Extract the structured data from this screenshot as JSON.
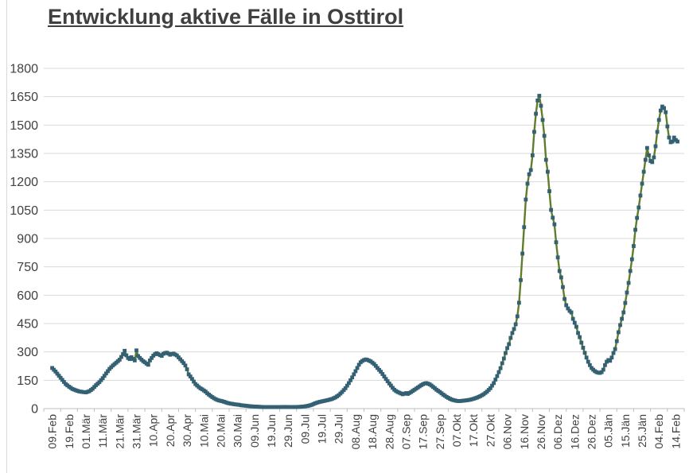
{
  "title": "Entwicklung aktive Fälle in Osttirol",
  "colors": {
    "line": "#5f7d2b",
    "marker": "#346074",
    "gridline": "#d9d9d9",
    "axis": "#bfbfbf",
    "text": "#404040",
    "title_text": "#404040",
    "background": "#ffffff",
    "window_edge": "#d9d9d9"
  },
  "chart_data": {
    "type": "line",
    "title": "Entwicklung aktive Fälle in Osttirol",
    "xlabel": "",
    "ylabel": "",
    "ylim": [
      0,
      1800
    ],
    "y_ticks": [
      0,
      150,
      300,
      450,
      600,
      750,
      900,
      1050,
      1200,
      1350,
      1500,
      1650,
      1800
    ],
    "grid": "horizontal",
    "legend": "none",
    "x_is_daily_dates": true,
    "x_total_days": 371,
    "x_tick_interval_days": 10,
    "x_tick_labels": [
      "09.Feb",
      "19.Feb",
      "01.Mär",
      "11.Mär",
      "21.Mär",
      "31.Mär",
      "10.Apr",
      "20.Apr",
      "30.Apr",
      "10.Mai",
      "20.Mai",
      "30.Mai",
      "09.Jun",
      "19.Jun",
      "29.Jun",
      "09.Jul",
      "19.Jul",
      "29.Jul",
      "08.Aug",
      "18.Aug",
      "28.Aug",
      "07.Sep",
      "17.Sep",
      "27.Sep",
      "07.Okt",
      "17.Okt",
      "27.Okt",
      "06.Nov",
      "16.Nov",
      "26.Nov",
      "06.Dez",
      "16.Dez",
      "26.Dez",
      "05.Jän",
      "15.Jän",
      "25.Jän",
      "04.Feb",
      "14.Feb"
    ],
    "series": [
      {
        "name": "aktive Fälle",
        "marker": "square",
        "keyframes_day_value": [
          [
            0,
            215
          ],
          [
            2,
            196
          ],
          [
            4,
            174
          ],
          [
            6,
            152
          ],
          [
            8,
            130
          ],
          [
            10,
            116
          ],
          [
            12,
            104
          ],
          [
            14,
            97
          ],
          [
            16,
            91
          ],
          [
            18,
            88
          ],
          [
            20,
            86
          ],
          [
            22,
            92
          ],
          [
            24,
            105
          ],
          [
            26,
            124
          ],
          [
            28,
            140
          ],
          [
            30,
            161
          ],
          [
            32,
            186
          ],
          [
            34,
            210
          ],
          [
            36,
            228
          ],
          [
            38,
            243
          ],
          [
            40,
            259
          ],
          [
            41,
            273
          ],
          [
            42,
            288
          ],
          [
            43,
            306
          ],
          [
            44,
            282
          ],
          [
            45,
            268
          ],
          [
            46,
            262
          ],
          [
            47,
            272
          ],
          [
            48,
            263
          ],
          [
            49,
            255
          ],
          [
            50,
            308
          ],
          [
            51,
            278
          ],
          [
            52,
            268
          ],
          [
            53,
            259
          ],
          [
            54,
            251
          ],
          [
            55,
            245
          ],
          [
            56,
            238
          ],
          [
            57,
            232
          ],
          [
            58,
            255
          ],
          [
            59,
            268
          ],
          [
            60,
            280
          ],
          [
            61,
            288
          ],
          [
            62,
            293
          ],
          [
            63,
            288
          ],
          [
            64,
            283
          ],
          [
            65,
            279
          ],
          [
            66,
            290
          ],
          [
            67,
            294
          ],
          [
            68,
            296
          ],
          [
            69,
            291
          ],
          [
            70,
            285
          ],
          [
            71,
            289
          ],
          [
            72,
            291
          ],
          [
            73,
            286
          ],
          [
            74,
            281
          ],
          [
            75,
            271
          ],
          [
            76,
            261
          ],
          [
            77,
            251
          ],
          [
            78,
            241
          ],
          [
            79,
            228
          ],
          [
            80,
            208
          ],
          [
            81,
            181
          ],
          [
            82,
            170
          ],
          [
            83,
            157
          ],
          [
            84,
            143
          ],
          [
            85,
            130
          ],
          [
            86,
            122
          ],
          [
            87,
            114
          ],
          [
            88,
            107
          ],
          [
            89,
            102
          ],
          [
            90,
            96
          ],
          [
            91,
            90
          ],
          [
            92,
            81
          ],
          [
            93,
            74
          ],
          [
            94,
            67
          ],
          [
            95,
            61
          ],
          [
            96,
            55
          ],
          [
            97,
            50
          ],
          [
            98,
            46
          ],
          [
            99,
            43
          ],
          [
            100,
            41
          ],
          [
            101,
            39
          ],
          [
            102,
            36
          ],
          [
            103,
            33
          ],
          [
            104,
            30
          ],
          [
            105,
            28
          ],
          [
            106,
            26
          ],
          [
            107,
            25
          ],
          [
            108,
            23
          ],
          [
            109,
            22
          ],
          [
            110,
            21
          ],
          [
            111,
            20
          ],
          [
            112,
            18
          ],
          [
            113,
            17
          ],
          [
            114,
            16
          ],
          [
            115,
            15
          ],
          [
            116,
            14
          ],
          [
            117,
            13
          ],
          [
            118,
            12
          ],
          [
            120,
            11
          ],
          [
            122,
            10
          ],
          [
            124,
            9
          ],
          [
            126,
            8
          ],
          [
            130,
            8
          ],
          [
            134,
            8
          ],
          [
            138,
            9
          ],
          [
            142,
            8
          ],
          [
            146,
            9
          ],
          [
            148,
            10
          ],
          [
            150,
            12
          ],
          [
            152,
            15
          ],
          [
            154,
            20
          ],
          [
            156,
            28
          ],
          [
            158,
            34
          ],
          [
            160,
            38
          ],
          [
            162,
            42
          ],
          [
            164,
            46
          ],
          [
            166,
            51
          ],
          [
            168,
            59
          ],
          [
            170,
            71
          ],
          [
            172,
            88
          ],
          [
            174,
            108
          ],
          [
            176,
            135
          ],
          [
            178,
            165
          ],
          [
            180,
            198
          ],
          [
            182,
            232
          ],
          [
            183,
            245
          ],
          [
            184,
            252
          ],
          [
            185,
            257
          ],
          [
            186,
            260
          ],
          [
            187,
            258
          ],
          [
            188,
            254
          ],
          [
            189,
            250
          ],
          [
            190,
            243
          ],
          [
            191,
            236
          ],
          [
            192,
            226
          ],
          [
            193,
            215
          ],
          [
            194,
            205
          ],
          [
            195,
            195
          ],
          [
            196,
            183
          ],
          [
            197,
            170
          ],
          [
            198,
            157
          ],
          [
            199,
            145
          ],
          [
            200,
            133
          ],
          [
            201,
            122
          ],
          [
            202,
            110
          ],
          [
            203,
            100
          ],
          [
            204,
            93
          ],
          [
            205,
            88
          ],
          [
            206,
            84
          ],
          [
            207,
            80
          ],
          [
            208,
            76
          ],
          [
            209,
            79
          ],
          [
            210,
            82
          ],
          [
            211,
            78
          ],
          [
            212,
            83
          ],
          [
            213,
            88
          ],
          [
            214,
            94
          ],
          [
            215,
            100
          ],
          [
            216,
            106
          ],
          [
            217,
            112
          ],
          [
            218,
            118
          ],
          [
            219,
            124
          ],
          [
            220,
            129
          ],
          [
            221,
            133
          ],
          [
            222,
            135
          ],
          [
            223,
            132
          ],
          [
            224,
            128
          ],
          [
            225,
            122
          ],
          [
            226,
            115
          ],
          [
            227,
            108
          ],
          [
            228,
            100
          ],
          [
            229,
            94
          ],
          [
            230,
            88
          ],
          [
            231,
            81
          ],
          [
            232,
            74
          ],
          [
            233,
            68
          ],
          [
            234,
            62
          ],
          [
            235,
            57
          ],
          [
            236,
            52
          ],
          [
            237,
            48
          ],
          [
            238,
            45
          ],
          [
            239,
            43
          ],
          [
            240,
            41
          ],
          [
            241,
            40
          ],
          [
            242,
            40
          ],
          [
            243,
            41
          ],
          [
            244,
            42
          ],
          [
            246,
            44
          ],
          [
            248,
            47
          ],
          [
            250,
            52
          ],
          [
            252,
            58
          ],
          [
            254,
            66
          ],
          [
            256,
            76
          ],
          [
            258,
            90
          ],
          [
            260,
            108
          ],
          [
            262,
            135
          ],
          [
            264,
            172
          ],
          [
            266,
            214
          ],
          [
            267,
            240
          ],
          [
            268,
            265
          ],
          [
            269,
            294
          ],
          [
            270,
            320
          ],
          [
            271,
            341
          ],
          [
            272,
            374
          ],
          [
            273,
            400
          ],
          [
            274,
            421
          ],
          [
            275,
            446
          ],
          [
            276,
            488
          ],
          [
            277,
            560
          ],
          [
            278,
            680
          ],
          [
            279,
            820
          ],
          [
            280,
            960
          ],
          [
            281,
            1106
          ],
          [
            282,
            1190
          ],
          [
            283,
            1240
          ],
          [
            284,
            1262
          ],
          [
            285,
            1340
          ],
          [
            286,
            1464
          ],
          [
            287,
            1560
          ],
          [
            288,
            1630
          ],
          [
            289,
            1655
          ],
          [
            290,
            1602
          ],
          [
            291,
            1527
          ],
          [
            292,
            1443
          ],
          [
            293,
            1316
          ],
          [
            294,
            1253
          ],
          [
            295,
            1150
          ],
          [
            296,
            1051
          ],
          [
            297,
            1010
          ],
          [
            298,
            975
          ],
          [
            299,
            880
          ],
          [
            300,
            800
          ],
          [
            301,
            728
          ],
          [
            302,
            694
          ],
          [
            303,
            643
          ],
          [
            304,
            580
          ],
          [
            305,
            547
          ],
          [
            306,
            530
          ],
          [
            307,
            517
          ],
          [
            308,
            509
          ],
          [
            309,
            475
          ],
          [
            310,
            454
          ],
          [
            311,
            433
          ],
          [
            312,
            400
          ],
          [
            313,
            378
          ],
          [
            314,
            349
          ],
          [
            315,
            322
          ],
          [
            316,
            295
          ],
          [
            317,
            270
          ],
          [
            318,
            248
          ],
          [
            319,
            230
          ],
          [
            320,
            215
          ],
          [
            321,
            206
          ],
          [
            322,
            198
          ],
          [
            323,
            193
          ],
          [
            324,
            190
          ],
          [
            325,
            189
          ],
          [
            326,
            193
          ],
          [
            327,
            206
          ],
          [
            328,
            230
          ],
          [
            329,
            248
          ],
          [
            330,
            257
          ],
          [
            331,
            253
          ],
          [
            332,
            270
          ],
          [
            333,
            294
          ],
          [
            334,
            315
          ],
          [
            335,
            357
          ],
          [
            336,
            404
          ],
          [
            337,
            442
          ],
          [
            338,
            475
          ],
          [
            339,
            509
          ],
          [
            340,
            559
          ],
          [
            341,
            614
          ],
          [
            342,
            665
          ],
          [
            343,
            728
          ],
          [
            344,
            790
          ],
          [
            345,
            860
          ],
          [
            346,
            946
          ],
          [
            347,
            1009
          ],
          [
            348,
            1064
          ],
          [
            349,
            1127
          ],
          [
            350,
            1190
          ],
          [
            351,
            1253
          ],
          [
            352,
            1316
          ],
          [
            353,
            1379
          ],
          [
            354,
            1340
          ],
          [
            355,
            1310
          ],
          [
            356,
            1304
          ],
          [
            357,
            1329
          ],
          [
            358,
            1388
          ],
          [
            359,
            1464
          ],
          [
            360,
            1527
          ],
          [
            361,
            1577
          ],
          [
            362,
            1598
          ],
          [
            363,
            1590
          ],
          [
            364,
            1568
          ],
          [
            365,
            1493
          ],
          [
            366,
            1434
          ],
          [
            367,
            1409
          ],
          [
            368,
            1413
          ],
          [
            369,
            1434
          ],
          [
            370,
            1421
          ],
          [
            371,
            1413
          ]
        ]
      }
    ]
  }
}
